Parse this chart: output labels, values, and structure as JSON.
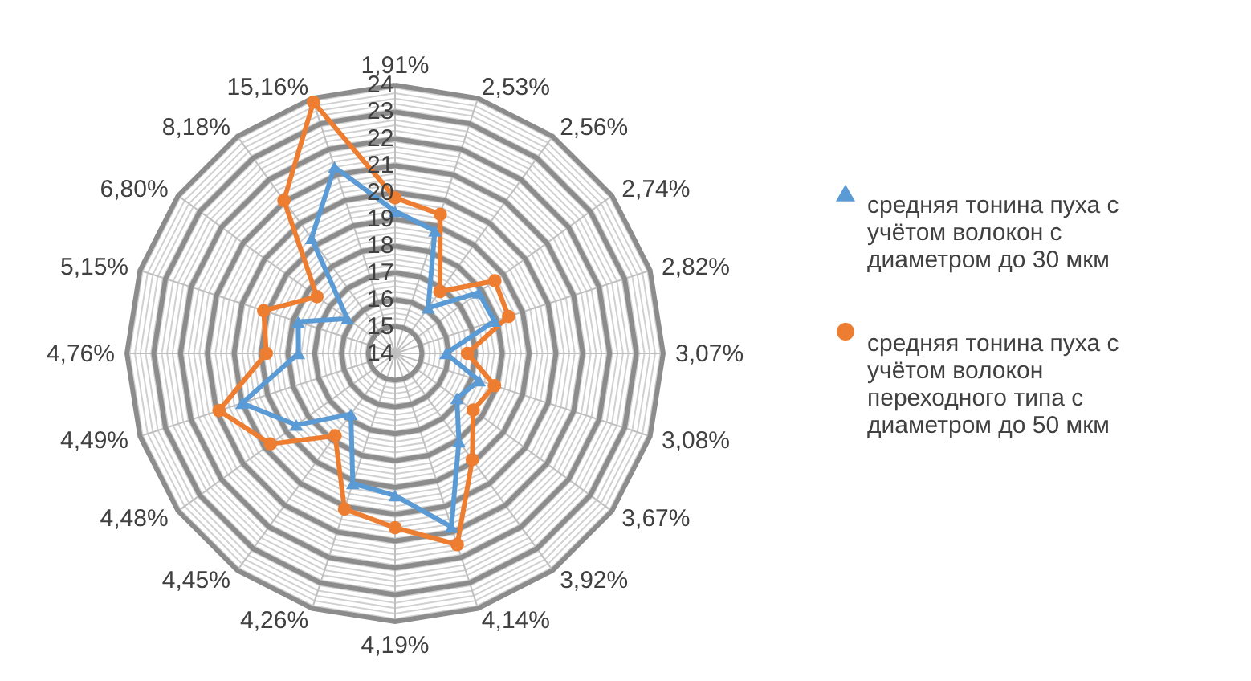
{
  "chart_data": {
    "type": "radar",
    "categories": [
      "1,91%",
      "2,53%",
      "2,56%",
      "2,74%",
      "2,82%",
      "3,07%",
      "3,08%",
      "3,67%",
      "3,92%",
      "4,14%",
      "4,19%",
      "4,26%",
      "4,45%",
      "4,48%",
      "4,49%",
      "4,76%",
      "5,15%",
      "6,80%",
      "8,18%",
      "15,16%"
    ],
    "series": [
      {
        "name": "средняя тонина пуха с учётом волокон с диаметром до 30 мкм",
        "color": "#5b9bd5",
        "marker": "triangle",
        "values": [
          19.3,
          18.8,
          16.1,
          17.85,
          17.9,
          15.9,
          17.3,
          16.85,
          18.05,
          20.8,
          19.3,
          19.1,
          16.8,
          18.55,
          20.0,
          17.6,
          17.8,
          16.2,
          19.3,
          21.3
        ]
      },
      {
        "name": "средняя тонина пуха с учётом волокон переходного типа с диаметром до 50 мкм",
        "color": "#ed7d31",
        "marker": "circle",
        "values": [
          19.8,
          19.45,
          16.85,
          18.6,
          18.45,
          16.7,
          17.9,
          17.6,
          18.9,
          21.5,
          20.5,
          20.1,
          17.8,
          19.75,
          20.9,
          18.8,
          19.15,
          17.6,
          21.05,
          23.85
        ]
      }
    ],
    "ylim": [
      14,
      24
    ],
    "yticks": [
      14,
      15,
      16,
      17,
      18,
      19,
      20,
      21,
      22,
      23,
      24
    ],
    "grid": true,
    "legend": "right"
  }
}
